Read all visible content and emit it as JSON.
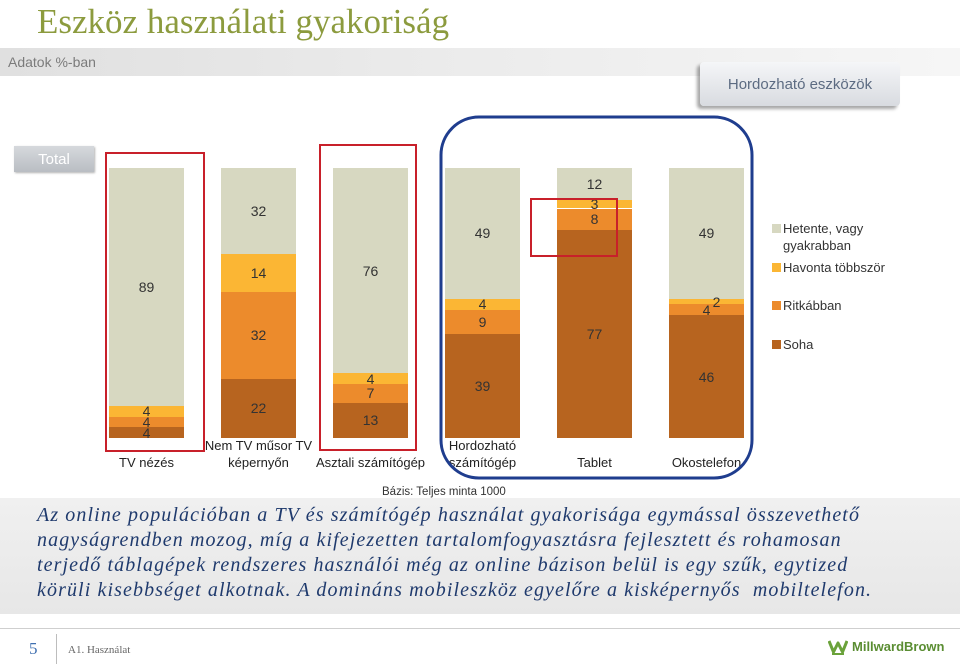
{
  "slide": {
    "title": "Eszköz használati gyakoriság",
    "subtitle": "Adatok %-ban",
    "total_label": "Total",
    "portable_label": "Hordozható eszközök",
    "base_note": "Bázis: Teljes minta 1000",
    "body_lines": [
      "Az online populációban a TV és számítógép használat gyakorisága egymással összevethető",
      "nagyságrendben mozog, míg a kifejezetten tartalomfogyasztásra fejlesztett és rohamosan",
      "terjedő táblagépek rendszeres használói még az online bázison belül is egy szűk, egytized",
      "körüli kisebbséget alkotnak. A domináns mobileszköz egyelőre a kisképernyős  mobiltelefon."
    ],
    "page_number": "5",
    "section": "A1. Használat",
    "logo_text": "MillwardBrown"
  },
  "colors": {
    "title": "#8c9b3e",
    "body_text": "#1f3a6d",
    "highlight_red": "#c8202a",
    "highlight_blue": "#1f3d8e",
    "logo": "#6aa23a"
  },
  "chart_data": {
    "type": "bar",
    "stacked": true,
    "categories": [
      "TV nézés",
      "Nem TV műsor TV\nképernyőn",
      "Asztali számítógép",
      "Hordozható\nszámítógép",
      "Tablet",
      "Okostelefon"
    ],
    "series": [
      {
        "name": "Hetente, vagy gyakrabban",
        "color": "#d7d8c1",
        "values": [
          89,
          32,
          76,
          49,
          12,
          49
        ]
      },
      {
        "name": "Havonta többször",
        "color": "#fbb634",
        "values": [
          4,
          14,
          4,
          4,
          3,
          2
        ]
      },
      {
        "name": "Ritkábban",
        "color": "#ec8b2c",
        "values": [
          4,
          32,
          7,
          9,
          8,
          4
        ]
      },
      {
        "name": "Soha",
        "color": "#b7641f",
        "values": [
          4,
          22,
          13,
          39,
          77,
          46
        ]
      }
    ],
    "ylim": [
      0,
      100
    ],
    "grid": false,
    "legend": "right"
  }
}
